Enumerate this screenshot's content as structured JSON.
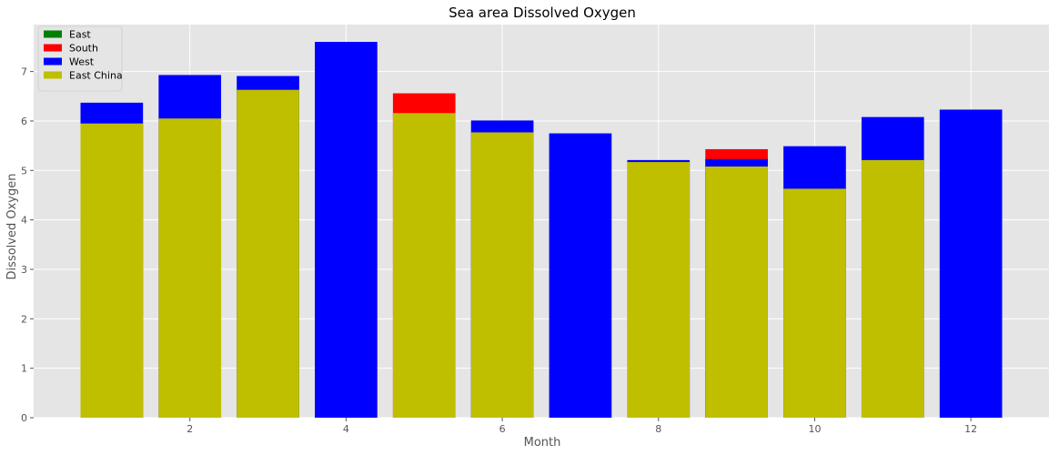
{
  "chart_data": {
    "type": "bar",
    "title": "Sea area Dissolved Oxygen",
    "xlabel": "Month",
    "ylabel": "Dissolved Oxygen",
    "x": [
      1,
      2,
      3,
      4,
      5,
      6,
      7,
      8,
      9,
      10,
      11,
      12
    ],
    "xlim": [
      0,
      13
    ],
    "ylim": [
      0,
      7.95
    ],
    "xticks": [
      2,
      4,
      6,
      8,
      10,
      12
    ],
    "yticks": [
      0,
      1,
      2,
      3,
      4,
      5,
      6,
      7
    ],
    "grid": true,
    "legend_position": "top-left",
    "overlay": "bars drawn in series order on top of each other (not cumulative)",
    "series": [
      {
        "name": "East",
        "color": "#008000",
        "values": [
          null,
          null,
          null,
          null,
          null,
          null,
          null,
          null,
          null,
          null,
          null,
          null
        ]
      },
      {
        "name": "South",
        "color": "#ff0000",
        "values": [
          null,
          null,
          null,
          null,
          6.56,
          null,
          null,
          null,
          5.43,
          null,
          null,
          null
        ]
      },
      {
        "name": "West",
        "color": "#0000ff",
        "values": [
          6.37,
          6.93,
          6.91,
          7.6,
          null,
          6.01,
          5.75,
          5.21,
          5.23,
          5.49,
          6.08,
          6.23
        ]
      },
      {
        "name": "East China",
        "color": "#bfbf00",
        "values": [
          5.95,
          6.05,
          6.63,
          null,
          6.16,
          5.77,
          null,
          5.17,
          5.08,
          4.63,
          5.21,
          null
        ]
      }
    ]
  }
}
